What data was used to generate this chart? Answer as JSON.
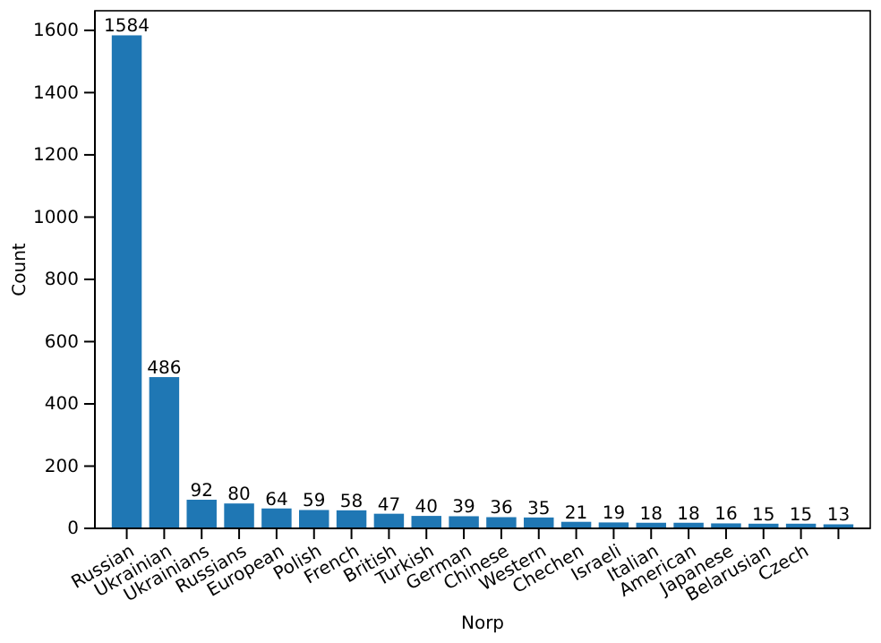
{
  "chart_data": {
    "type": "bar",
    "xlabel": "Norp",
    "ylabel": "Count",
    "categories": [
      "Russian",
      "Ukrainian",
      "Ukrainians",
      "Russians",
      "European",
      "Polish",
      "French",
      "British",
      "Turkish",
      "German",
      "Chinese",
      "Western",
      "Chechen",
      "Israeli",
      "Italian",
      "American",
      "Japanese",
      "Belarusian",
      "Czech",
      null
    ],
    "values": [
      1584,
      486,
      92,
      80,
      64,
      59,
      58,
      47,
      40,
      39,
      36,
      35,
      21,
      19,
      18,
      18,
      16,
      15,
      15,
      13
    ],
    "color": "#1f77b4",
    "ylim": [
      0,
      1663
    ],
    "yticks": [
      0,
      200,
      400,
      600,
      800,
      1000,
      1200,
      1400,
      1600
    ],
    "data_labels": true,
    "grid": false
  }
}
